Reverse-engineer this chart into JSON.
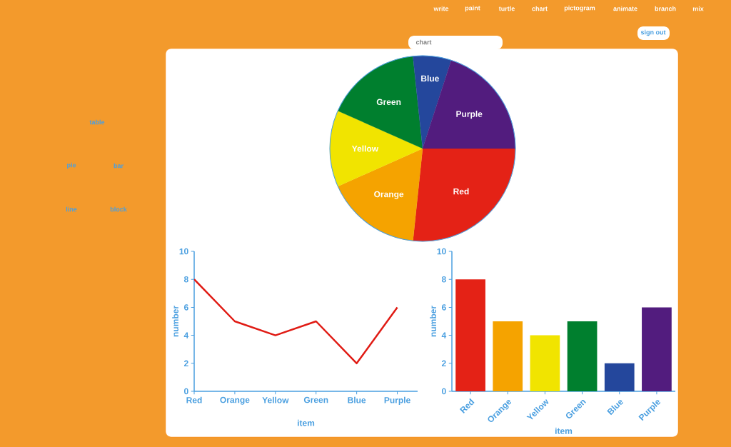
{
  "chart_data": [
    {
      "type": "pie",
      "categories": [
        "Red",
        "Orange",
        "Yellow",
        "Green",
        "Blue",
        "Purple"
      ],
      "values": [
        26.66,
        16.67,
        13.33,
        16.67,
        6.67,
        20
      ],
      "colors": [
        "#e42216",
        "#f5a300",
        "#f1e400",
        "#007f2e",
        "#24479c",
        "#521c7e"
      ]
    },
    {
      "type": "line",
      "xlabel": "item",
      "ylabel": "number",
      "categories": [
        "Red",
        "Orange",
        "Yellow",
        "Green",
        "Blue",
        "Purple"
      ],
      "values": [
        8,
        5,
        4,
        5,
        2,
        6
      ],
      "color": "#e01b14",
      "ylim": [
        0,
        10
      ],
      "yticks": [
        0,
        2,
        4,
        6,
        8,
        10
      ]
    },
    {
      "type": "bar",
      "xlabel": "item",
      "ylabel": "number",
      "categories": [
        "Red",
        "Orange",
        "Yellow",
        "Green",
        "Blue",
        "Purple"
      ],
      "values": [
        8,
        5,
        4,
        5,
        2,
        6
      ],
      "colors": [
        "#e42216",
        "#f5a300",
        "#f1e400",
        "#007f2e",
        "#24479c",
        "#521c7e"
      ],
      "ylim": [
        0,
        10
      ],
      "yticks": [
        0,
        2,
        4,
        6,
        8,
        10
      ]
    },
    {
      "type": "other",
      "annotations": [
        "write",
        "paint",
        "turtle",
        "chart",
        "pictogram",
        "animate",
        "branch",
        "mix",
        "chart",
        "sign out",
        "table",
        "pie",
        "bar",
        "line",
        "block"
      ]
    }
  ]
}
